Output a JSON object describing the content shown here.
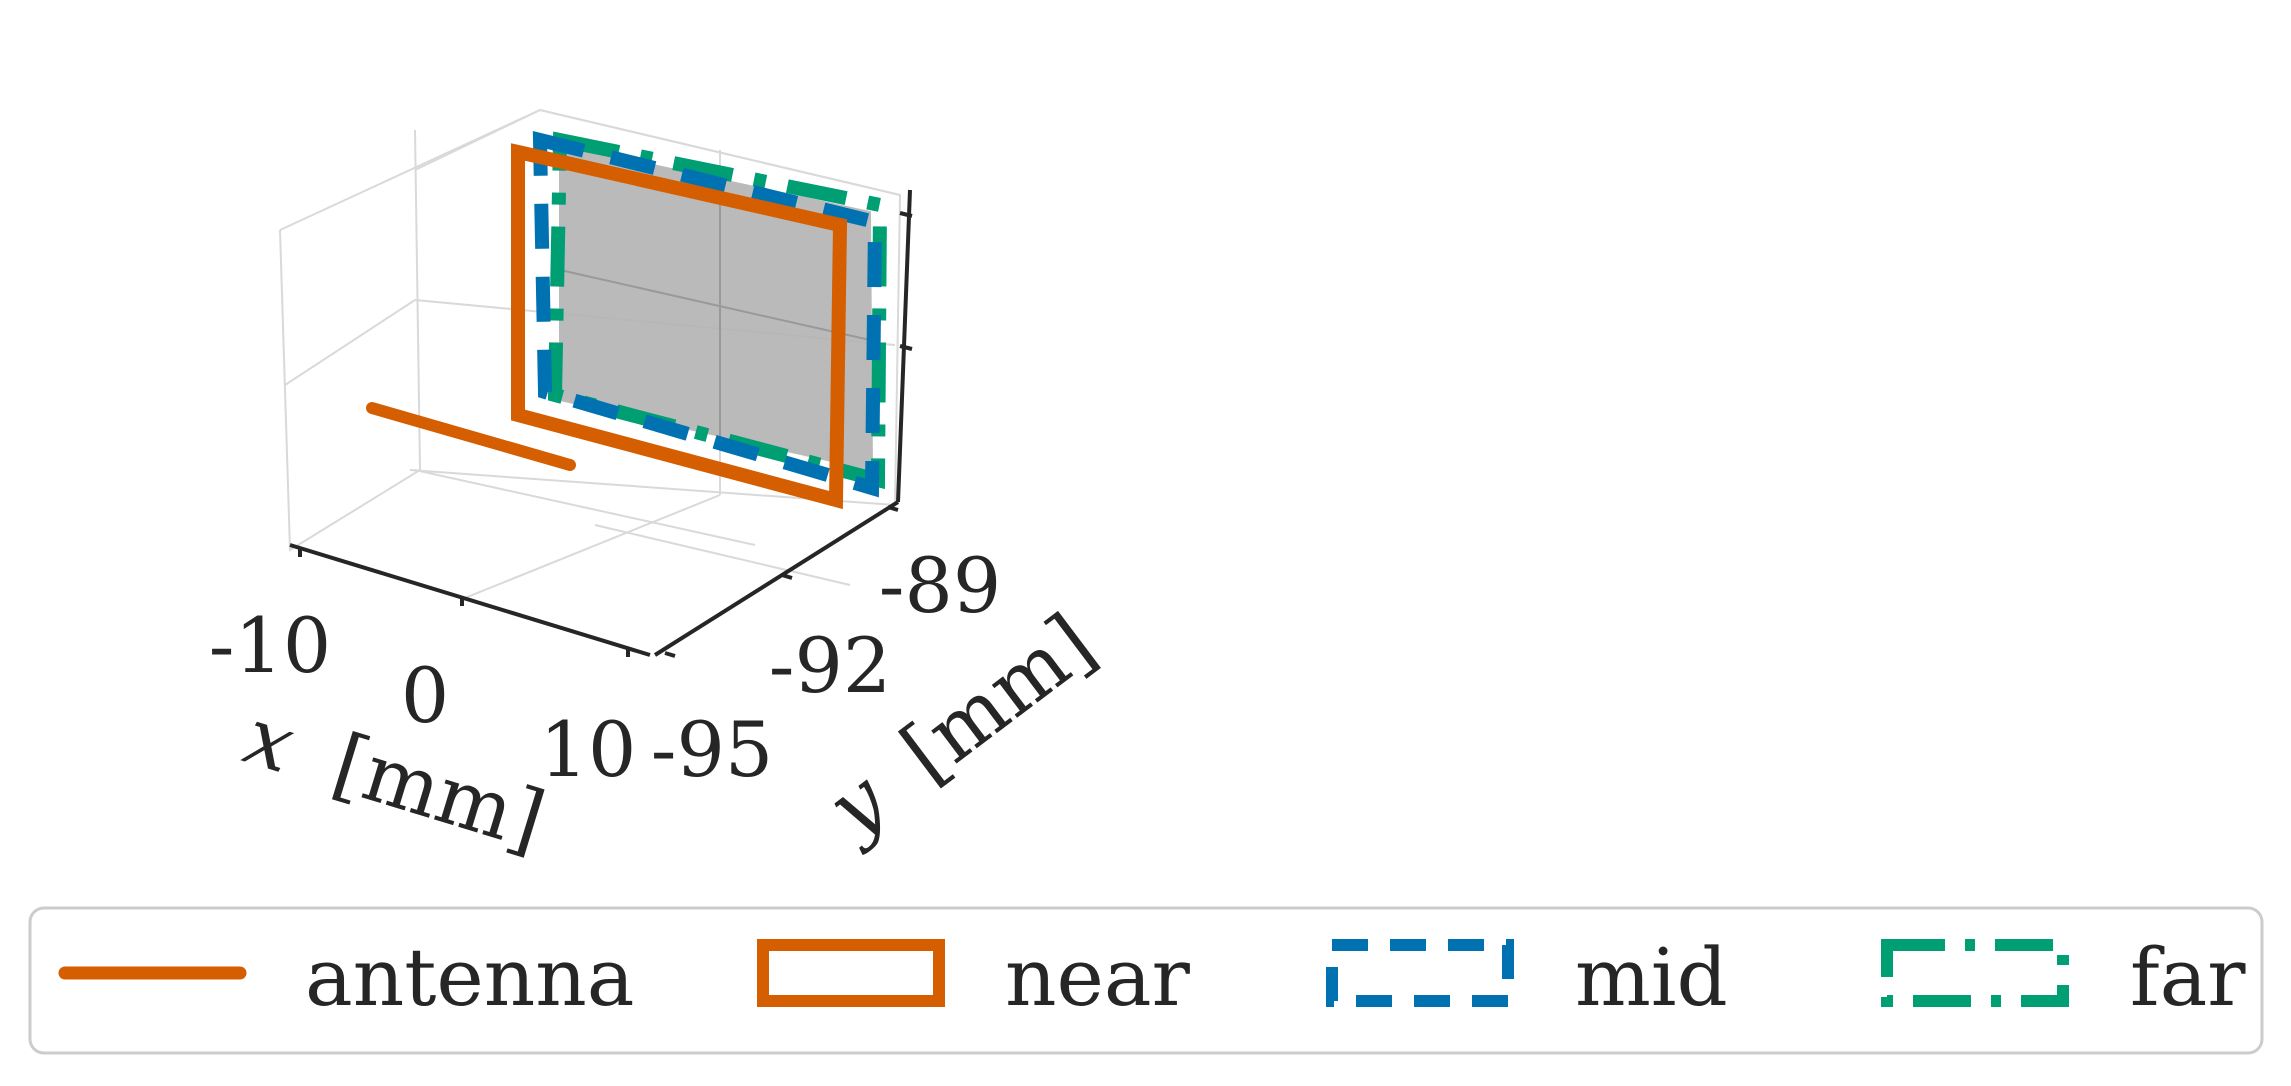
{
  "chart_data": {
    "type": "3d-line",
    "title": "",
    "xlabel_var": "x",
    "xlabel_unit": "[mm]",
    "ylabel_var": "y",
    "ylabel_unit": "[mm]",
    "x_ticks": [
      "-10",
      "0",
      "10"
    ],
    "y_ticks": [
      "-95",
      "-92",
      "-89"
    ],
    "xlim": [
      -12,
      12
    ],
    "ylim": [
      -96,
      -88
    ],
    "grid": true,
    "legend_position": "bottom",
    "series": [
      {
        "name": "antenna",
        "style": "solid",
        "color": "#d55e00",
        "marker": "line"
      },
      {
        "name": "near",
        "style": "solid",
        "color": "#d55e00",
        "marker": "rect"
      },
      {
        "name": "mid",
        "style": "dashed",
        "color": "#0072b2",
        "marker": "rect"
      },
      {
        "name": "far",
        "style": "dashdot",
        "color": "#009e73",
        "marker": "rect"
      }
    ]
  }
}
